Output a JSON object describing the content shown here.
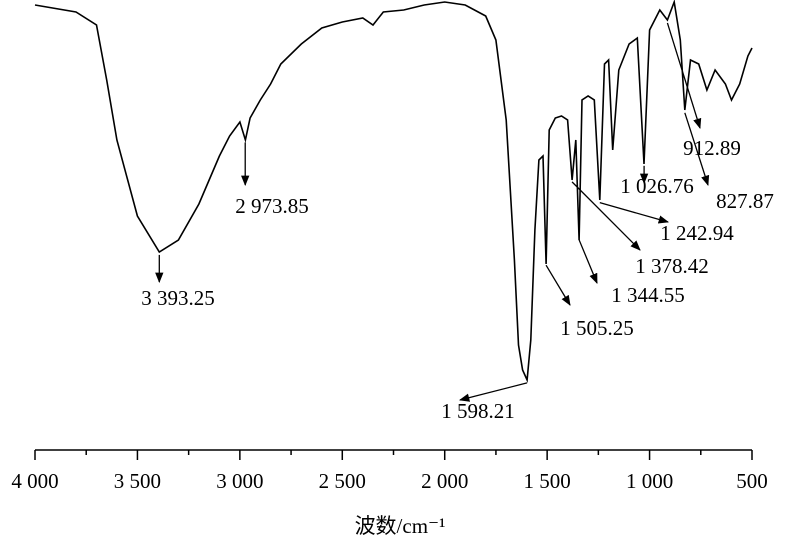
{
  "chart_data": {
    "type": "line",
    "xlabel": "波数/cm⁻¹",
    "x": [
      4000,
      3800,
      3700,
      3650,
      3600,
      3500,
      3393,
      3300,
      3200,
      3100,
      3050,
      3000,
      2973,
      2950,
      2900,
      2850,
      2800,
      2700,
      2600,
      2500,
      2400,
      2350,
      2300,
      2200,
      2100,
      2000,
      1900,
      1800,
      1750,
      1700,
      1660,
      1640,
      1620,
      1598,
      1580,
      1560,
      1540,
      1520,
      1505,
      1490,
      1460,
      1430,
      1400,
      1378,
      1360,
      1344,
      1330,
      1300,
      1270,
      1243,
      1220,
      1200,
      1180,
      1150,
      1100,
      1060,
      1027,
      1000,
      950,
      913,
      880,
      850,
      828,
      800,
      760,
      720,
      680,
      630,
      600,
      560,
      520,
      500
    ],
    "values": [
      98.75,
      97,
      93.75,
      80,
      65,
      46,
      37,
      40,
      49,
      61,
      66,
      69.5,
      65,
      70.5,
      75,
      79,
      84,
      89,
      93,
      94.5,
      95.5,
      93.75,
      97,
      97.5,
      98.75,
      99.5,
      98.75,
      96,
      90,
      70,
      35,
      13.75,
      7.5,
      5,
      15,
      42.5,
      60,
      61,
      34,
      67.5,
      70.5,
      71,
      70,
      55,
      65,
      40,
      75,
      76,
      75,
      50,
      84,
      85,
      62.5,
      82.5,
      89,
      90.5,
      59,
      92.5,
      97.5,
      95,
      99.5,
      90,
      72.5,
      85,
      84,
      77.5,
      82.5,
      79,
      75,
      79,
      86,
      88
    ],
    "color": "#000000",
    "xlim": [
      4000,
      500
    ],
    "ylim": [
      0,
      100
    ],
    "xticks": [
      {
        "value": 4000,
        "label": "4 000"
      },
      {
        "value": 3500,
        "label": "3 500"
      },
      {
        "value": 3000,
        "label": "3 000"
      },
      {
        "value": 2500,
        "label": "2 500"
      },
      {
        "value": 2000,
        "label": "2 000"
      },
      {
        "value": 1500,
        "label": "1 500"
      },
      {
        "value": 1000,
        "label": "1 000"
      },
      500
    ],
    "annotations": [
      {
        "x": 3393.25,
        "label": "3 393.25"
      },
      {
        "x": 2973.85,
        "label": "2 973.85"
      },
      {
        "x": 1598.21,
        "label": "1 598.21"
      },
      {
        "x": 1505.25,
        "label": "1 505.25"
      },
      {
        "x": 1344.55,
        "label": "1 344.55"
      },
      {
        "x": 1378.42,
        "label": "1 378.42"
      },
      {
        "x": 1242.94,
        "label": "1 242.94"
      },
      {
        "x": 1026.76,
        "label": "1 026.76"
      },
      {
        "x": 827.87,
        "label": "827.87"
      },
      {
        "x": 912.89,
        "label": "912.89"
      }
    ]
  }
}
